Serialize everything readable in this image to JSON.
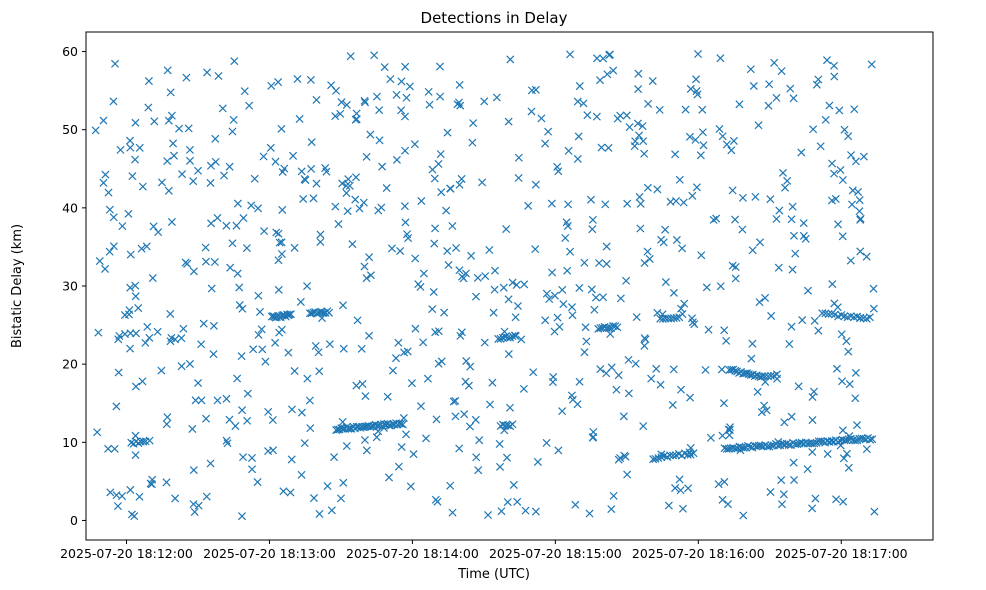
{
  "chart_data": {
    "type": "scatter",
    "title": "Detections in Delay",
    "xlabel": "Time (UTC)",
    "ylabel": "Bistatic Delay (km)",
    "marker": "x",
    "color": "#1f77b4",
    "xlim_seconds": [
      -89,
      266.5
    ],
    "ylim": [
      -2.5,
      62.5
    ],
    "x_ticks": [
      {
        "t": -72,
        "label": "2025-07-20 18:12:00"
      },
      {
        "t": -12,
        "label": "2025-07-20 18:13:00"
      },
      {
        "t": 48,
        "label": "2025-07-20 18:14:00"
      },
      {
        "t": 108,
        "label": "2025-07-20 18:15:00"
      },
      {
        "t": 168,
        "label": "2025-07-20 18:16:00"
      },
      {
        "t": 228,
        "label": "2025-07-20 18:17:00"
      }
    ],
    "y_ticks": [
      0,
      10,
      20,
      30,
      40,
      50,
      60
    ],
    "time_origin": "2025-07-20 18:13:12 UTC",
    "time_range_seconds": [
      -85,
      242
    ],
    "noise_points": 780,
    "tracks": [
      {
        "t0": -11,
        "t1": -3,
        "d0": 26.0,
        "d1": 26.3,
        "n": 16
      },
      {
        "t0": 5,
        "t1": 13,
        "d0": 26.5,
        "d1": 26.7,
        "n": 12
      },
      {
        "t0": 16,
        "t1": 44,
        "d0": 11.7,
        "d1": 12.4,
        "n": 40
      },
      {
        "t0": 84,
        "t1": 91,
        "d0": 23.3,
        "d1": 23.6,
        "n": 8
      },
      {
        "t0": 85,
        "t1": 90,
        "d0": 12.1,
        "d1": 12.2,
        "n": 6
      },
      {
        "t0": 126,
        "t1": 134,
        "d0": 24.6,
        "d1": 24.8,
        "n": 10
      },
      {
        "t0": 150,
        "t1": 166,
        "d0": 8.0,
        "d1": 8.6,
        "n": 14
      },
      {
        "t0": 152,
        "t1": 160,
        "d0": 25.8,
        "d1": 26.0,
        "n": 8
      },
      {
        "t0": 181,
        "t1": 195,
        "d0": 19.3,
        "d1": 18.3,
        "n": 18
      },
      {
        "t0": 196,
        "t1": 201,
        "d0": 18.4,
        "d1": 18.6,
        "n": 5
      },
      {
        "t0": 179,
        "t1": 241,
        "d0": 9.2,
        "d1": 10.5,
        "n": 70
      },
      {
        "t0": 220,
        "t1": 240,
        "d0": 26.4,
        "d1": 25.9,
        "n": 16
      },
      {
        "t0": -70,
        "t1": -64,
        "d0": 9.9,
        "d1": 10.1,
        "n": 7
      },
      {
        "t0": -75,
        "t1": -68,
        "d0": 23.7,
        "d1": 23.9,
        "n": 4
      }
    ]
  }
}
